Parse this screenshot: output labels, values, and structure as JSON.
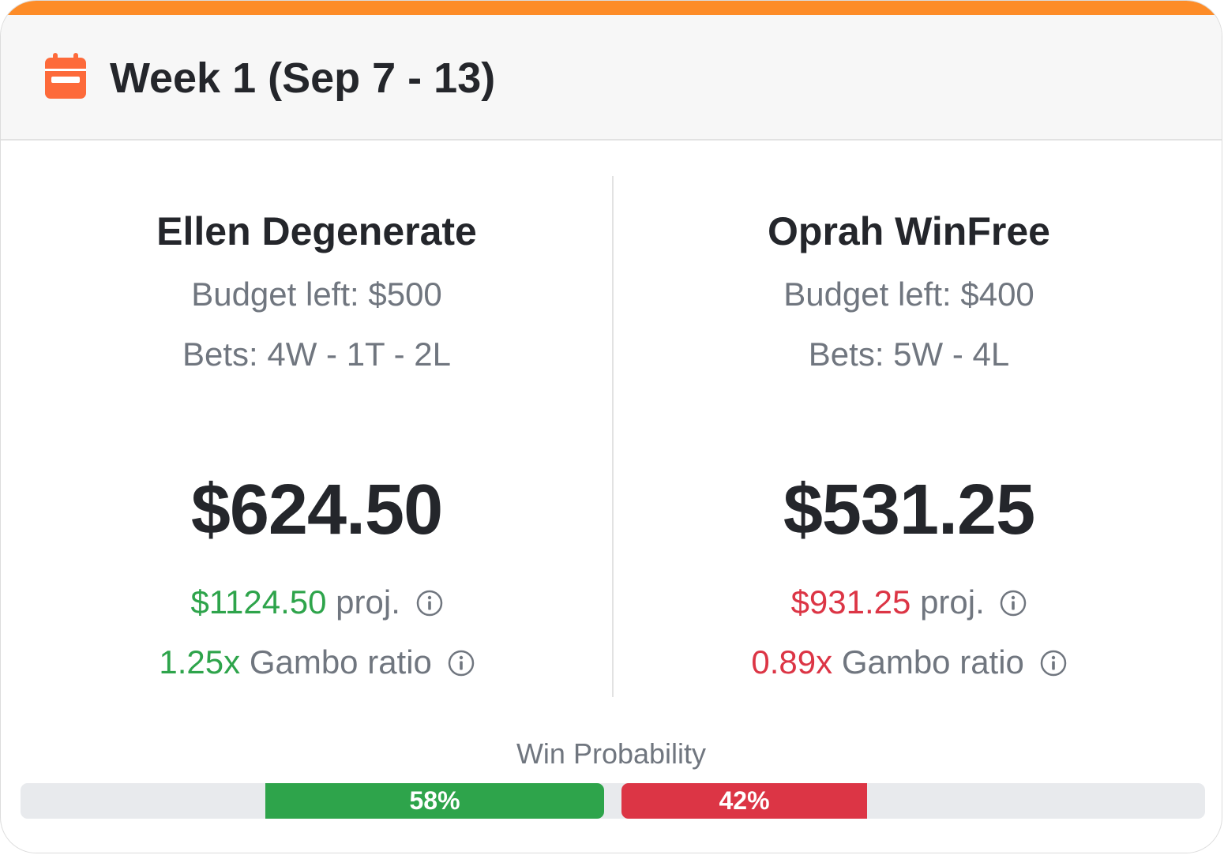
{
  "header": {
    "title": "Week 1 (Sep 7 - 13)",
    "icon": "calendar-icon",
    "accent_color": "#fd8c28",
    "icon_color": "#fd6a3a"
  },
  "players": [
    {
      "name": "Ellen Degenerate",
      "budget_left": "Budget left: $500",
      "bets": "Bets: 4W - 1T - 2L",
      "amount": "$624.50",
      "projected_value": "$1124.50",
      "projected_suffix": "proj.",
      "ratio_value": "1.25x",
      "ratio_suffix": "Gambo ratio",
      "status_color": "#2ea44b"
    },
    {
      "name": "Oprah WinFree",
      "budget_left": "Budget left: $400",
      "bets": "Bets: 5W - 4L",
      "amount": "$531.25",
      "projected_value": "$931.25",
      "projected_suffix": "proj.",
      "ratio_value": "0.89x",
      "ratio_suffix": "Gambo ratio",
      "status_color": "#dc3545"
    }
  ],
  "win_probability": {
    "label": "Win Probability",
    "left_label": "58%",
    "right_label": "42%",
    "left_value": 0.58,
    "right_value": 0.42
  }
}
